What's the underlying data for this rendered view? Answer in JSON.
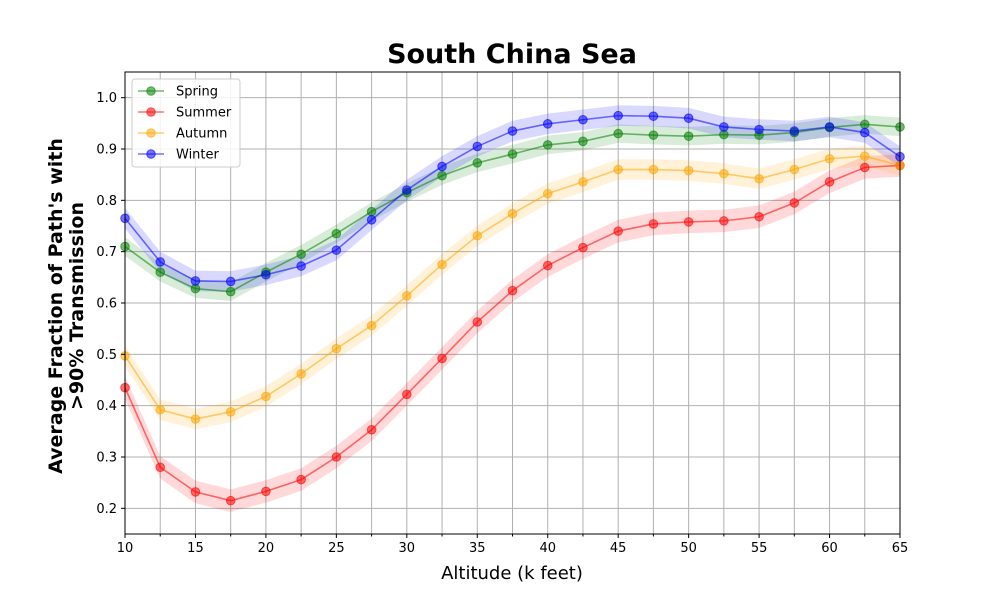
{
  "chart_data": {
    "type": "line",
    "title": "South China Sea",
    "xlabel": "Altitude (k feet)",
    "ylabel_lines": [
      "Average Fraction of Path's with",
      ">90% Transmission"
    ],
    "xlim": [
      10,
      65
    ],
    "ylim": [
      0.15,
      1.05
    ],
    "x_ticks": [
      10,
      15,
      20,
      25,
      30,
      35,
      40,
      45,
      50,
      55,
      60,
      65
    ],
    "x_tick_labels": [
      "10",
      "15",
      "20",
      "25",
      "30",
      "35",
      "40",
      "45",
      "50",
      "55",
      "60",
      "65"
    ],
    "y_ticks": [
      0.2,
      0.3,
      0.4,
      0.5,
      0.6,
      0.7,
      0.8,
      0.9,
      1.0
    ],
    "y_tick_labels": [
      "0.2",
      "0.3",
      "0.4",
      "0.5",
      "0.6",
      "0.7",
      "0.8",
      "0.9",
      "1.0"
    ],
    "grid": true,
    "legend_position": "top-left",
    "x": [
      10,
      12.5,
      15,
      17.5,
      20,
      22.5,
      25,
      27.5,
      30,
      32.5,
      35,
      37.5,
      40,
      42.5,
      45,
      47.5,
      50,
      52.5,
      55,
      57.5,
      60,
      62.5,
      65
    ],
    "series": [
      {
        "name": "Spring",
        "color": "#008000",
        "values": [
          0.71,
          0.66,
          0.628,
          0.622,
          0.66,
          0.695,
          0.735,
          0.778,
          0.815,
          0.848,
          0.873,
          0.89,
          0.908,
          0.915,
          0.93,
          0.927,
          0.925,
          0.928,
          0.927,
          0.932,
          0.942,
          0.948,
          0.943
        ],
        "band": 0.018
      },
      {
        "name": "Summer",
        "color": "#ff0000",
        "values": [
          0.435,
          0.28,
          0.232,
          0.215,
          0.233,
          0.256,
          0.3,
          0.353,
          0.422,
          0.492,
          0.563,
          0.624,
          0.673,
          0.708,
          0.74,
          0.754,
          0.758,
          0.76,
          0.768,
          0.795,
          0.836,
          0.864,
          0.868
        ],
        "band": 0.022
      },
      {
        "name": "Autumn",
        "color": "#ffa500",
        "values": [
          0.497,
          0.392,
          0.374,
          0.388,
          0.418,
          0.462,
          0.511,
          0.556,
          0.614,
          0.675,
          0.731,
          0.774,
          0.813,
          0.836,
          0.86,
          0.86,
          0.858,
          0.852,
          0.842,
          0.86,
          0.881,
          0.886,
          0.868
        ],
        "band": 0.02
      },
      {
        "name": "Winter",
        "color": "#0000ff",
        "values": [
          0.765,
          0.68,
          0.643,
          0.642,
          0.655,
          0.672,
          0.703,
          0.762,
          0.82,
          0.866,
          0.905,
          0.935,
          0.949,
          0.957,
          0.965,
          0.964,
          0.96,
          0.943,
          0.938,
          0.935,
          0.943,
          0.932,
          0.885
        ],
        "band": 0.02
      }
    ]
  }
}
